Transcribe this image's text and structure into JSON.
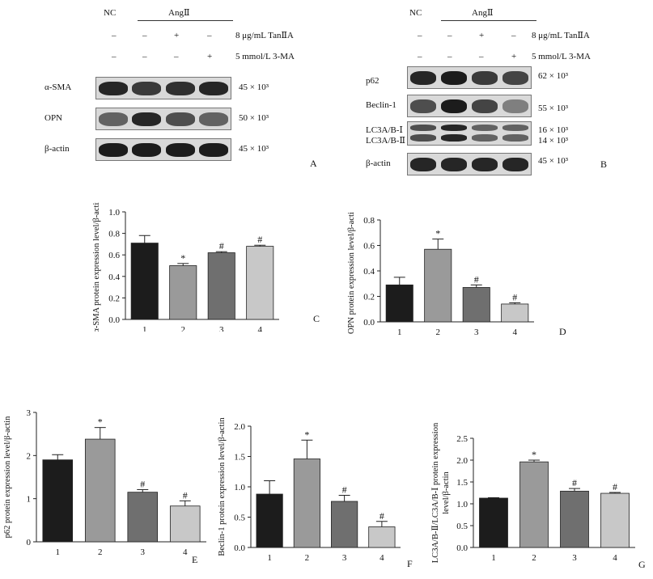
{
  "panelA": {
    "label": "A",
    "nc": "NC",
    "ang": "AngⅡ",
    "rows": [
      {
        "signs": [
          "–",
          "–",
          "+",
          "–"
        ],
        "label": "8 μg/mL TanⅡA"
      },
      {
        "signs": [
          "–",
          "–",
          "–",
          "+"
        ],
        "label": "5 mmol/L 3-MA"
      }
    ],
    "blots": [
      {
        "name": "α-SMA",
        "mw": "45 × 10³",
        "intensity": [
          0.9,
          0.8,
          0.85,
          0.9
        ]
      },
      {
        "name": "OPN",
        "mw": "50 × 10³",
        "intensity": [
          0.6,
          0.9,
          0.7,
          0.6
        ]
      },
      {
        "name": "β-actin",
        "mw": "45 × 10³",
        "intensity": [
          0.95,
          0.95,
          0.95,
          0.95
        ]
      }
    ]
  },
  "panelB": {
    "label": "B",
    "nc": "NC",
    "ang": "AngⅡ",
    "rows": [
      {
        "signs": [
          "–",
          "–",
          "+",
          "–"
        ],
        "label": "8 μg/mL TanⅡA"
      },
      {
        "signs": [
          "–",
          "–",
          "–",
          "+"
        ],
        "label": "5 mmol/L 3-MA"
      }
    ],
    "blots": [
      {
        "name": "p62",
        "mw": "62 × 10³",
        "intensity": [
          0.9,
          0.95,
          0.8,
          0.75
        ]
      },
      {
        "name": "Beclin-1",
        "mw": "55 × 10³",
        "intensity": [
          0.7,
          0.95,
          0.75,
          0.45
        ]
      },
      {
        "name": "LC3A/B-Ⅰ",
        "name2": "LC3A/B-Ⅱ",
        "mw": "16 × 10³",
        "mw2": "14 × 10³",
        "intensity": [
          0.7,
          0.9,
          0.6,
          0.6
        ]
      },
      {
        "name": "β-actin",
        "mw": "45 × 10³",
        "intensity": [
          0.9,
          0.9,
          0.9,
          0.9
        ]
      }
    ]
  },
  "chart_data": [
    {
      "panel": "C",
      "type": "bar",
      "ylabel": "α-SMA protein expression level/β-actin",
      "categories": [
        "1",
        "2",
        "3",
        "4"
      ],
      "values": [
        0.71,
        0.5,
        0.62,
        0.68
      ],
      "errors": [
        0.07,
        0.02,
        0.01,
        0.01
      ],
      "marks": [
        "",
        "*",
        "#",
        "#"
      ],
      "ylim": [
        0,
        1.0
      ],
      "yticks": [
        "0.0",
        "0.2",
        "0.4",
        "0.6",
        "0.8",
        "1.0"
      ],
      "colors": [
        "#1c1c1c",
        "#9a9a9a",
        "#6f6f6f",
        "#c8c8c8"
      ]
    },
    {
      "panel": "D",
      "type": "bar",
      "ylabel": "OPN protein expression level/β-actin",
      "categories": [
        "1",
        "2",
        "3",
        "4"
      ],
      "values": [
        0.29,
        0.57,
        0.27,
        0.14
      ],
      "errors": [
        0.06,
        0.08,
        0.02,
        0.01
      ],
      "marks": [
        "",
        "*",
        "#",
        "#"
      ],
      "ylim": [
        0,
        0.8
      ],
      "yticks": [
        "0.0",
        "0.2",
        "0.4",
        "0.6",
        "0.8"
      ],
      "colors": [
        "#1c1c1c",
        "#9a9a9a",
        "#6f6f6f",
        "#c8c8c8"
      ]
    },
    {
      "panel": "E",
      "type": "bar",
      "ylabel": "p62 protein expression level/β-actin",
      "categories": [
        "1",
        "2",
        "3",
        "4"
      ],
      "values": [
        1.9,
        2.38,
        1.15,
        0.83
      ],
      "errors": [
        0.12,
        0.27,
        0.06,
        0.12
      ],
      "marks": [
        "",
        "*",
        "#",
        "#"
      ],
      "ylim": [
        0,
        3
      ],
      "yticks": [
        "0",
        "1",
        "2",
        "3"
      ],
      "colors": [
        "#1c1c1c",
        "#9a9a9a",
        "#6f6f6f",
        "#c8c8c8"
      ]
    },
    {
      "panel": "F",
      "type": "bar",
      "ylabel": "Beclin-1 protein expression level/β-actin",
      "categories": [
        "1",
        "2",
        "3",
        "4"
      ],
      "values": [
        0.88,
        1.46,
        0.76,
        0.34
      ],
      "errors": [
        0.22,
        0.31,
        0.1,
        0.09
      ],
      "marks": [
        "",
        "*",
        "#",
        "#"
      ],
      "ylim": [
        0,
        2.0
      ],
      "yticks": [
        "0.0",
        "0.5",
        "1.0",
        "1.5",
        "2.0"
      ],
      "colors": [
        "#1c1c1c",
        "#9a9a9a",
        "#6f6f6f",
        "#c8c8c8"
      ]
    },
    {
      "panel": "G",
      "type": "bar",
      "ylabel": "LC3A/B-Ⅱ/LC3A/B-Ⅰ protein expression",
      "ylabel2": "level/β-actin",
      "categories": [
        "1",
        "2",
        "3",
        "4"
      ],
      "values": [
        1.13,
        1.96,
        1.29,
        1.24
      ],
      "errors": [
        0.01,
        0.04,
        0.06,
        0.02
      ],
      "marks": [
        "",
        "*",
        "#",
        "#"
      ],
      "ylim": [
        0,
        2.5
      ],
      "yticks": [
        "0.0",
        "0.5",
        "1.0",
        "1.5",
        "2.0",
        "2.5"
      ],
      "colors": [
        "#1c1c1c",
        "#9a9a9a",
        "#6f6f6f",
        "#c8c8c8"
      ]
    }
  ]
}
